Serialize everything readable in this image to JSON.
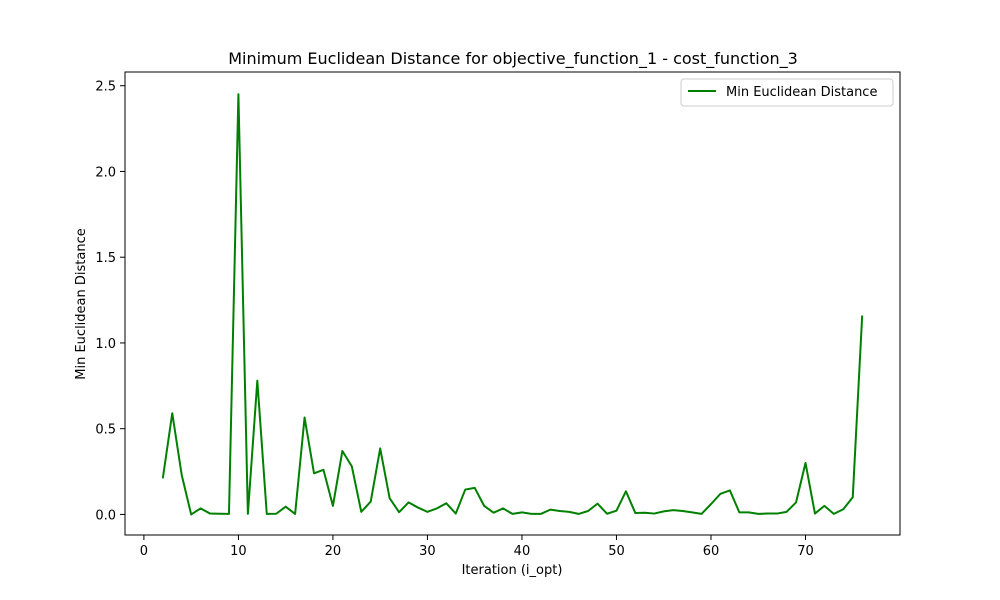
{
  "chart_data": {
    "type": "line",
    "title": "Minimum Euclidean Distance for objective_function_1 - cost_function_3",
    "xlabel": "Iteration (i_opt)",
    "ylabel": "Min Euclidean Distance",
    "xlim": [
      -2,
      80
    ],
    "ylim": [
      -0.12,
      2.58
    ],
    "xticks": [
      0,
      10,
      20,
      30,
      40,
      50,
      60,
      70
    ],
    "xtick_labels": [
      "0",
      "10",
      "20",
      "30",
      "40",
      "50",
      "60",
      "70"
    ],
    "yticks": [
      0.0,
      0.5,
      1.0,
      1.5,
      2.0,
      2.5
    ],
    "ytick_labels": [
      "0.0",
      "0.5",
      "1.0",
      "1.5",
      "2.0",
      "2.5"
    ],
    "grid": false,
    "legend_position": "top-right",
    "series": [
      {
        "name": "Min Euclidean Distance",
        "color": "#008000",
        "x": [
          2,
          3,
          4,
          5,
          6,
          7,
          8,
          9,
          10,
          11,
          12,
          13,
          14,
          15,
          16,
          17,
          18,
          19,
          20,
          21,
          22,
          23,
          24,
          25,
          26,
          27,
          28,
          29,
          30,
          31,
          32,
          33,
          34,
          35,
          36,
          37,
          38,
          39,
          40,
          41,
          42,
          43,
          44,
          45,
          46,
          47,
          48,
          49,
          50,
          51,
          52,
          53,
          54,
          55,
          56,
          57,
          58,
          59,
          60,
          61,
          62,
          63,
          64,
          65,
          66,
          67,
          68,
          69,
          70,
          71,
          72,
          73,
          74,
          75,
          76
        ],
        "y": [
          0.21,
          0.59,
          0.23,
          0.0,
          0.035,
          0.005,
          0.004,
          0.003,
          2.45,
          0.003,
          0.78,
          0.003,
          0.004,
          0.045,
          0.003,
          0.565,
          0.24,
          0.26,
          0.05,
          0.37,
          0.28,
          0.015,
          0.075,
          0.385,
          0.095,
          0.013,
          0.07,
          0.04,
          0.015,
          0.035,
          0.065,
          0.005,
          0.145,
          0.155,
          0.05,
          0.01,
          0.035,
          0.003,
          0.012,
          0.003,
          0.003,
          0.028,
          0.02,
          0.015,
          0.003,
          0.02,
          0.063,
          0.004,
          0.022,
          0.135,
          0.008,
          0.01,
          0.005,
          0.018,
          0.025,
          0.02,
          0.012,
          0.003,
          0.06,
          0.12,
          0.14,
          0.012,
          0.012,
          0.003,
          0.005,
          0.005,
          0.015,
          0.07,
          0.3,
          0.005,
          0.05,
          0.003,
          0.03,
          0.1,
          1.16
        ]
      }
    ]
  }
}
